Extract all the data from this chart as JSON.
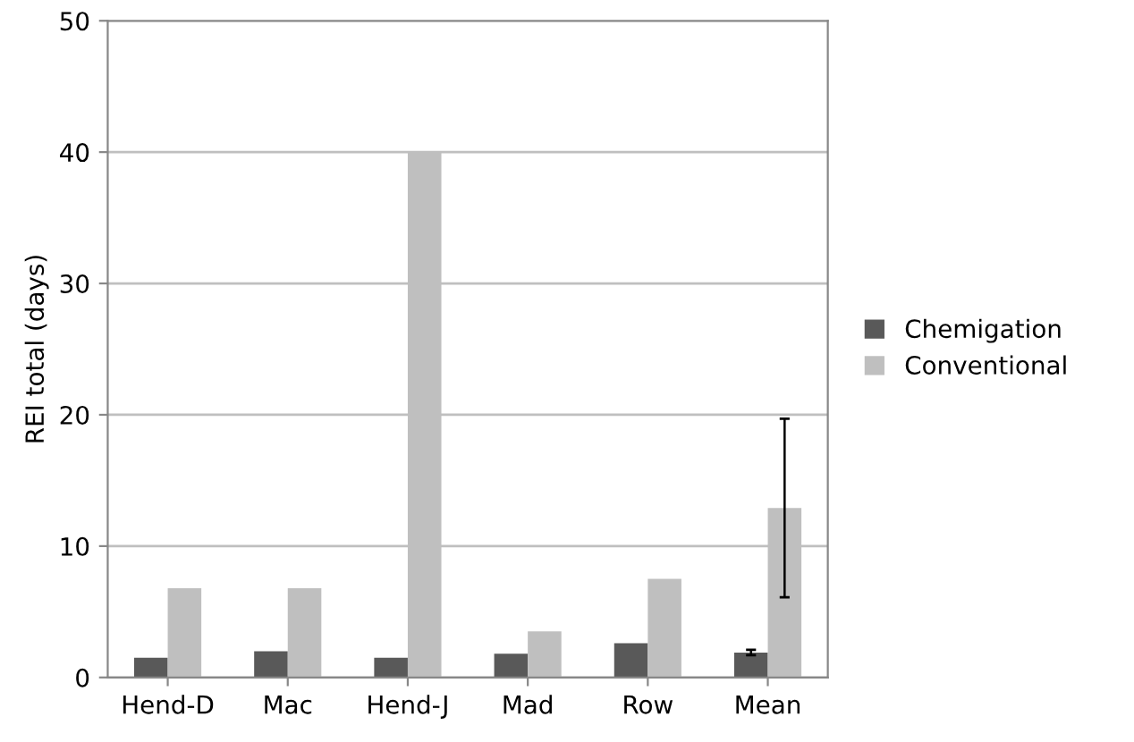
{
  "chart_data": {
    "type": "bar",
    "ylabel": "REI total (days)",
    "categories": [
      "Hend-D",
      "Mac",
      "Hend-J",
      "Mad",
      "Row",
      "Mean"
    ],
    "series": [
      {
        "name": "Chemigation",
        "color": "#595959",
        "values": [
          1.5,
          2.0,
          1.5,
          1.8,
          2.6,
          1.9
        ],
        "errors": [
          null,
          null,
          null,
          null,
          null,
          0.2
        ]
      },
      {
        "name": "Conventional",
        "color": "#bfbfbf",
        "values": [
          6.8,
          6.8,
          40,
          3.5,
          7.5,
          12.9
        ],
        "errors": [
          null,
          null,
          null,
          null,
          null,
          6.8
        ]
      }
    ],
    "ylim": [
      0,
      50
    ],
    "yticks": [
      0,
      10,
      20,
      30,
      40,
      50
    ],
    "grid": "y",
    "legend": "right"
  }
}
